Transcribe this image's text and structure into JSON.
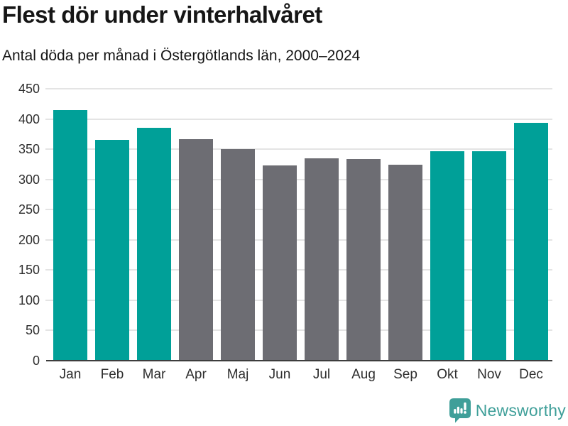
{
  "page": {
    "title": "Flest dör under vinterhalvåret",
    "subtitle": "Antal döda per månad i Östergötlands län, 2000–2024"
  },
  "logo": {
    "text": "Newsworthy",
    "color": "#3f9f99"
  },
  "colors": {
    "winter_bar": "#00a098",
    "summer_bar": "#6d6d73",
    "grid": "#e4e4e4",
    "axis": "#3d3d3d",
    "tick_text": "#2e2e2e"
  },
  "chart_data": {
    "type": "bar",
    "title": "Flest dör under vinterhalvåret",
    "subtitle": "Antal döda per månad i Östergötlands län, 2000–2024",
    "categories": [
      "Jan",
      "Feb",
      "Mar",
      "Apr",
      "Maj",
      "Jun",
      "Jul",
      "Aug",
      "Sep",
      "Okt",
      "Nov",
      "Dec"
    ],
    "values": [
      415,
      366,
      386,
      367,
      350,
      323,
      335,
      334,
      324,
      347,
      347,
      394
    ],
    "bar_colors": [
      "#00a098",
      "#00a098",
      "#00a098",
      "#6d6d73",
      "#6d6d73",
      "#6d6d73",
      "#6d6d73",
      "#6d6d73",
      "#6d6d73",
      "#00a098",
      "#00a098",
      "#00a098"
    ],
    "xlabel": "",
    "ylabel": "",
    "ylim": [
      0,
      450
    ],
    "ytick_step": 50,
    "yticks": [
      0,
      50,
      100,
      150,
      200,
      250,
      300,
      350,
      400,
      450
    ],
    "grid": "horizontal",
    "legend": "none"
  }
}
